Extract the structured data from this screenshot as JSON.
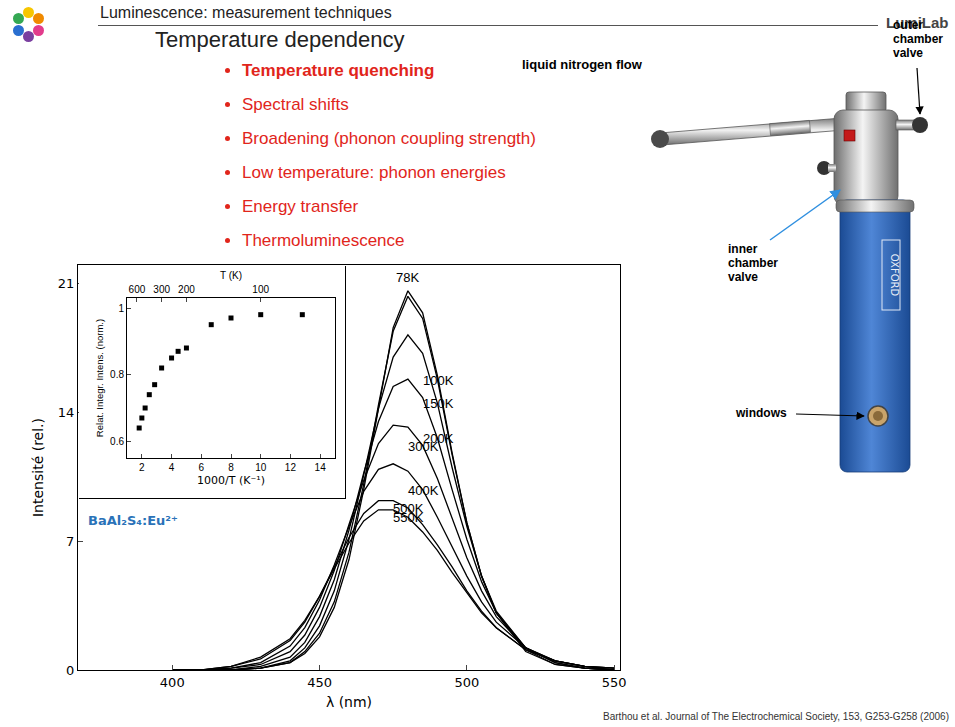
{
  "slide": {
    "header": "Luminescence: measurement techniques",
    "brand": "LumiLab",
    "title": "Temperature dependency",
    "bullets": [
      "Temperature quenching",
      "Spectral shifts",
      "Broadening (phonon coupling strength)",
      "Low temperature: phonon energies",
      "Energy transfer",
      "Thermoluminescence"
    ],
    "photo_labels": {
      "nitrogen": "liquid nitrogen flow",
      "outer_valve": "outer chamber valve",
      "inner_valve": "inner chamber valve",
      "windows": "windows",
      "maker": "OXFORD"
    },
    "citation": "Barthou et al. Journal of The Electrochemical Society, 153, G253-G258 (2006)"
  },
  "chart_data": [
    {
      "type": "line",
      "x_label": "λ (nm)",
      "y_label": "Intensité (rel.)",
      "annotation": "BaAl₂S₄:Eu²⁺",
      "x": [
        400,
        410,
        420,
        430,
        440,
        445,
        450,
        455,
        460,
        465,
        470,
        475,
        480,
        485,
        490,
        495,
        500,
        505,
        510,
        520,
        530,
        540,
        550
      ],
      "series": [
        {
          "name": "78K",
          "color": "#000000",
          "values": [
            0,
            0,
            0,
            0.1,
            0.4,
            0.9,
            1.8,
            3.4,
            6.0,
            9.8,
            14.3,
            18.6,
            20.6,
            19.4,
            16.0,
            11.8,
            8.0,
            5.1,
            3.1,
            1.0,
            0.3,
            0.1,
            0
          ]
        },
        {
          "name": "100K",
          "color": "#000000",
          "values": [
            0,
            0,
            0,
            0.1,
            0.4,
            1.0,
            2.0,
            3.7,
            6.4,
            10.1,
            14.4,
            18.4,
            20.3,
            19.1,
            15.8,
            11.7,
            8.0,
            5.1,
            3.1,
            1.1,
            0.3,
            0.1,
            0
          ]
        },
        {
          "name": "150K",
          "color": "#000000",
          "values": [
            0,
            0,
            0,
            0.1,
            0.5,
            1.2,
            2.4,
            4.3,
            7.1,
            10.6,
            14.2,
            17.0,
            18.2,
            17.2,
            14.5,
            11.0,
            7.8,
            5.1,
            3.2,
            1.2,
            0.4,
            0.1,
            0
          ]
        },
        {
          "name": "200K",
          "color": "#000000",
          "values": [
            0,
            0,
            0,
            0.2,
            0.7,
            1.5,
            2.9,
            4.9,
            7.6,
            10.7,
            13.5,
            15.4,
            15.8,
            14.8,
            12.6,
            9.8,
            7.1,
            4.8,
            3.1,
            1.2,
            0.4,
            0.1,
            0
          ]
        },
        {
          "name": "300K",
          "color": "#000000",
          "values": [
            0,
            0,
            0.1,
            0.3,
            1.0,
            1.9,
            3.4,
            5.4,
            7.9,
            10.3,
            12.3,
            13.3,
            13.2,
            12.2,
            10.4,
            8.2,
            6.1,
            4.3,
            2.9,
            1.2,
            0.5,
            0.2,
            0
          ]
        },
        {
          "name": "400K",
          "color": "#000000",
          "values": [
            0,
            0,
            0.1,
            0.4,
            1.3,
            2.3,
            3.8,
            5.7,
            7.8,
            9.7,
            10.9,
            11.2,
            10.8,
            9.8,
            8.3,
            6.7,
            5.1,
            3.7,
            2.6,
            1.2,
            0.5,
            0.2,
            0.1
          ]
        },
        {
          "name": "500K",
          "color": "#000000",
          "values": [
            0,
            0,
            0.2,
            0.6,
            1.6,
            2.6,
            4.0,
            5.6,
            7.2,
            8.5,
            9.2,
            9.2,
            8.8,
            7.9,
            6.8,
            5.6,
            4.3,
            3.2,
            2.3,
            1.1,
            0.5,
            0.2,
            0.1
          ]
        },
        {
          "name": "550K",
          "color": "#000000",
          "values": [
            0,
            0,
            0.2,
            0.7,
            1.7,
            2.7,
            4.0,
            5.5,
            6.9,
            8.1,
            8.7,
            8.7,
            8.3,
            7.5,
            6.5,
            5.3,
            4.2,
            3.1,
            2.3,
            1.1,
            0.5,
            0.2,
            0.1
          ]
        }
      ],
      "xlim": [
        368,
        552
      ],
      "xticks": [
        400,
        450,
        500,
        550
      ],
      "ylim": [
        0,
        22
      ],
      "yticks": [
        0,
        7,
        14,
        21
      ],
      "grid": false
    },
    {
      "type": "scatter",
      "x_label": "1000/T (K⁻¹)",
      "x2_label": "T (K)",
      "y_label": "Relat. Integr. Intens. (norm.)",
      "x": [
        1.82,
        2.0,
        2.22,
        2.5,
        2.86,
        3.33,
        4.0,
        4.44,
        5.0,
        6.67,
        8.0,
        10.0,
        12.8
      ],
      "values": [
        0.64,
        0.67,
        0.7,
        0.74,
        0.77,
        0.82,
        0.85,
        0.87,
        0.88,
        0.95,
        0.97,
        0.98,
        0.98
      ],
      "color": "#000000",
      "marker": "square",
      "xlim": [
        1,
        15
      ],
      "xticks": [
        2,
        4,
        6,
        8,
        10,
        12,
        14
      ],
      "x2ticks": [
        {
          "value": 1.667,
          "label": "600"
        },
        {
          "value": 3.333,
          "label": "300"
        },
        {
          "value": 5,
          "label": "200"
        },
        {
          "value": 10,
          "label": "100"
        }
      ],
      "ylim": [
        0.55,
        1.03
      ],
      "yticks": [
        0.6,
        0.8,
        1
      ],
      "grid": false
    }
  ]
}
